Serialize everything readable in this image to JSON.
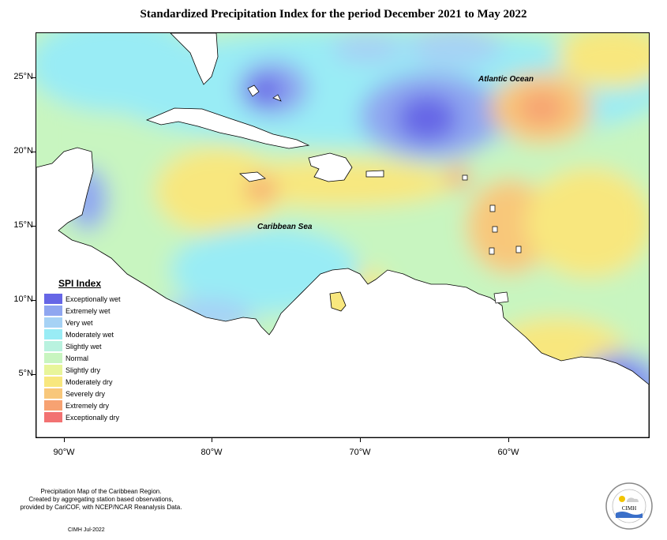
{
  "title": "Standardized Precipitation Index for the period December 2021 to May 2022",
  "map": {
    "ocean_labels": [
      "Atlantic Ocean",
      "Caribbean Sea"
    ],
    "lat_ticks": [
      "25°N",
      "20°N",
      "15°N",
      "10°N",
      "5°N"
    ],
    "lon_ticks": [
      "90°W",
      "80°W",
      "70°W",
      "60°W"
    ]
  },
  "legend": {
    "title": "SPI Index",
    "items": [
      {
        "label": "Exceptionally wet",
        "color": "#6666e6"
      },
      {
        "label": "Extremely wet",
        "color": "#8fa6f0"
      },
      {
        "label": "Very wet",
        "color": "#a6d2f5"
      },
      {
        "label": "Moderately wet",
        "color": "#99ecf5"
      },
      {
        "label": "Slightly wet",
        "color": "#b9f2df"
      },
      {
        "label": "Normal",
        "color": "#c8f5c0"
      },
      {
        "label": "Slightly dry",
        "color": "#e8f59a"
      },
      {
        "label": "Moderately dry",
        "color": "#f8e77e"
      },
      {
        "label": "Severely dry",
        "color": "#f8c77a"
      },
      {
        "label": "Extremely dry",
        "color": "#f7a272"
      },
      {
        "label": "Exceptionally dry",
        "color": "#f27272"
      }
    ]
  },
  "footer": {
    "line1": "Precipitation Map of the Caribbean Region.",
    "line2": "Created by aggregating station based observations,",
    "line3": "provided by CariCOF, with NCEP/NCAR Reanalysis Data.",
    "credit": "CIMH Jul-2022",
    "logo_text": "CIMH"
  }
}
